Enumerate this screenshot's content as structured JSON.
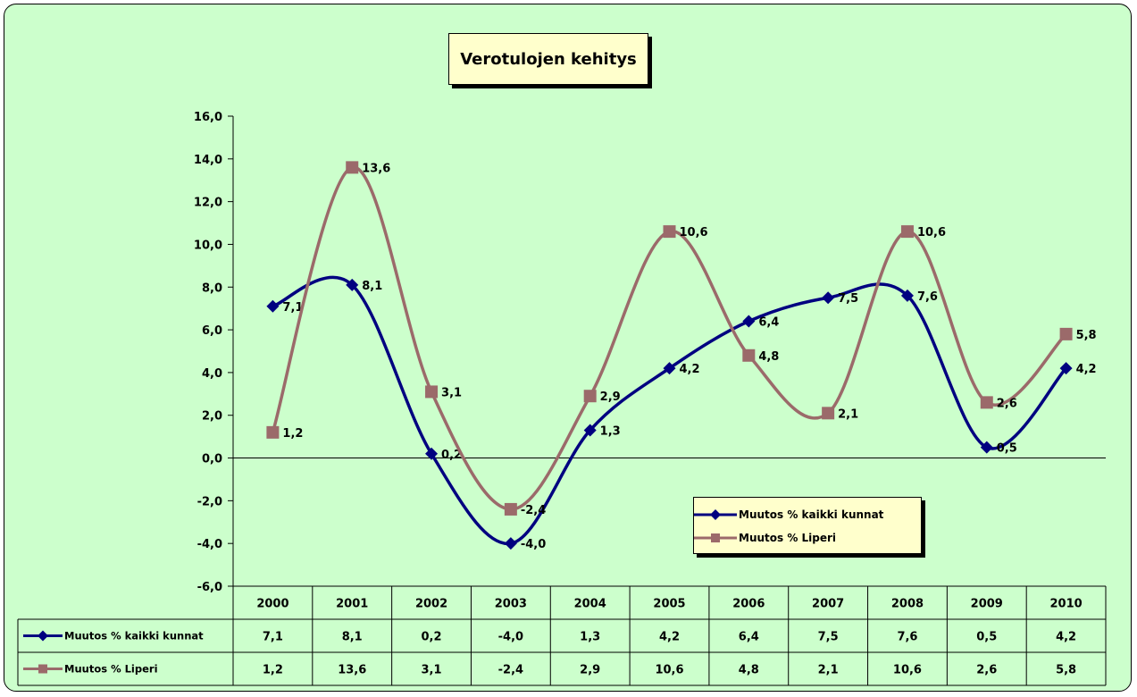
{
  "chart_data": {
    "type": "line",
    "title": "Verotulojen kehitys",
    "categories": [
      "2000",
      "2001",
      "2002",
      "2003",
      "2004",
      "2005",
      "2006",
      "2007",
      "2008",
      "2009",
      "2010"
    ],
    "ylim": [
      -6,
      16
    ],
    "yticks": [
      "-6,0",
      "-4,0",
      "-2,0",
      "0,0",
      "2,0",
      "4,0",
      "6,0",
      "8,0",
      "10,0",
      "12,0",
      "14,0",
      "16,0"
    ],
    "smoothed": true,
    "legend_position": "inside-lower-right",
    "data_table": true,
    "series": [
      {
        "name": "Muutos % kaikki kunnat",
        "values": [
          7.1,
          8.1,
          0.2,
          -4.0,
          1.3,
          4.2,
          6.4,
          7.5,
          7.6,
          0.5,
          4.2
        ],
        "labels": [
          "7,1",
          "8,1",
          "0,2",
          "-4,0",
          "1,3",
          "4,2",
          "6,4",
          "7,5",
          "7,6",
          "0,5",
          "4,2"
        ],
        "color": "#000080",
        "marker": "diamond"
      },
      {
        "name": "Muutos % Liperi",
        "values": [
          1.2,
          13.6,
          3.1,
          -2.4,
          2.9,
          10.6,
          4.8,
          2.1,
          10.6,
          2.6,
          5.8
        ],
        "labels": [
          "1,2",
          "13,6",
          "3,1",
          "-2,4",
          "2,9",
          "10,6",
          "4,8",
          "2,1",
          "10,6",
          "2,6",
          "5,8"
        ],
        "color": "#9b6a6a",
        "marker": "square"
      }
    ]
  },
  "colors": {
    "background": "#ccffcc",
    "box_fill": "#ffffcc",
    "series_kunnat": "#000080",
    "series_liperi": "#9b6a6a"
  }
}
